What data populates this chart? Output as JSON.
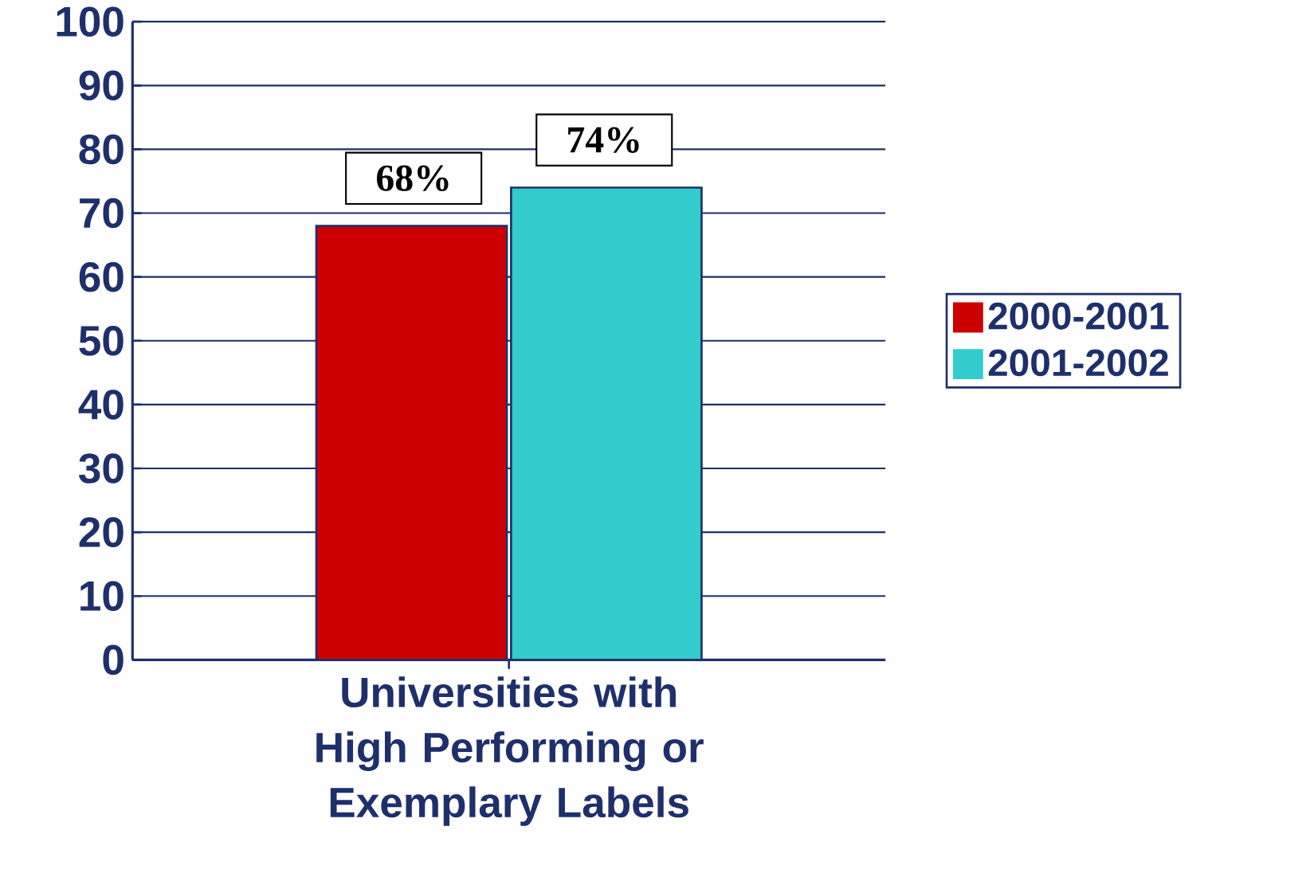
{
  "chart_data": {
    "type": "bar",
    "categories": [
      "Universities with High Performing or Exemplary Labels"
    ],
    "series": [
      {
        "name": "2000-2001",
        "color": "#cc0000",
        "values": [
          68
        ],
        "value_labels": [
          "68%"
        ]
      },
      {
        "name": "2001-2002",
        "color": "#33cccc",
        "values": [
          74
        ],
        "value_labels": [
          "74%"
        ]
      }
    ],
    "ylim": [
      0,
      100
    ],
    "yticks": [
      0,
      10,
      20,
      30,
      40,
      50,
      60,
      70,
      80,
      90,
      100
    ],
    "grid": "y",
    "legend": "right"
  }
}
